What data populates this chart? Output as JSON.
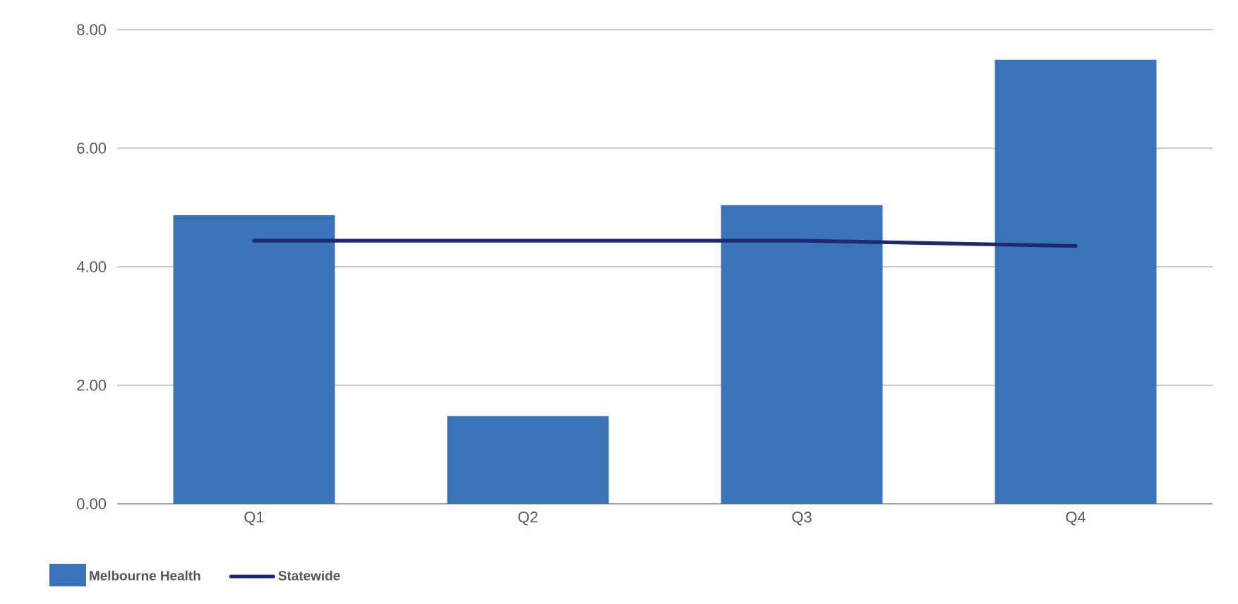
{
  "chart_data": {
    "type": "bar",
    "categories": [
      "Q1",
      "Q2",
      "Q3",
      "Q4"
    ],
    "series": [
      {
        "name": "Melbourne Health",
        "color": "#3b73b9",
        "values": [
          4.87,
          1.48,
          5.04,
          7.49
        ]
      },
      {
        "name": "Statewide",
        "type": "line",
        "color": "#1f2a6e",
        "values": [
          4.44,
          4.44,
          4.44,
          4.35
        ]
      }
    ],
    "ylim": [
      0,
      8
    ],
    "yticks": [
      {
        "value": 0,
        "label": "0.00"
      },
      {
        "value": 2,
        "label": "2.00"
      },
      {
        "value": 4,
        "label": "4.00"
      },
      {
        "value": 6,
        "label": "6.00"
      },
      {
        "value": 8,
        "label": "8.00"
      }
    ],
    "grid": "y",
    "legend": "bottom left",
    "marker": "none",
    "line_style": "solid"
  }
}
